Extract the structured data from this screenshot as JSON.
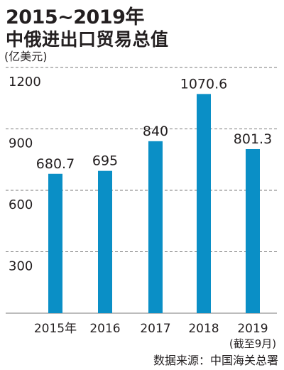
{
  "title_line1": "2015~2019年",
  "title_line2": "中俄进出口贸易总值",
  "unit": "(亿美元)",
  "source": "数据来源：中国海关总署",
  "colors": {
    "bar": "#0a8fc6",
    "grid": "#7a7a7a",
    "text": "#231f20"
  },
  "chart_data": {
    "type": "bar",
    "title": "2015~2019年 中俄进出口贸易总值",
    "ylabel": "(亿美元)",
    "categories": [
      "2015年",
      "2016",
      "2017",
      "2018",
      "2019"
    ],
    "category_notes": [
      "",
      "",
      "",
      "",
      "(截至9月)"
    ],
    "values": [
      680.7,
      695,
      840,
      1070.6,
      801.3
    ],
    "value_labels": [
      "680.7",
      "695",
      "840",
      "1070.6",
      "801.3"
    ],
    "ylim": [
      0,
      1200
    ],
    "yticks": [
      300,
      600,
      900,
      1200
    ],
    "grid": true,
    "grid_style": "dashed"
  }
}
